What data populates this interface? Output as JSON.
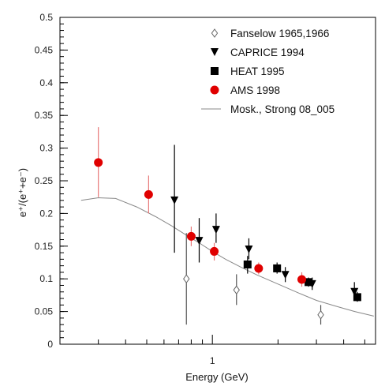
{
  "chart_data": {
    "type": "scatter",
    "xlabel": "Energy (GeV)",
    "ylabel": "e⁺/(e⁺+e⁻)",
    "xscale": "log",
    "xlim": [
      0.2,
      5.6
    ],
    "ylim": [
      0,
      0.5
    ],
    "x_ticks": [
      {
        "value": 1,
        "label": "1"
      }
    ],
    "y_ticks": [
      {
        "value": 0,
        "label": "0"
      },
      {
        "value": 0.05,
        "label": "0.05"
      },
      {
        "value": 0.1,
        "label": "0.1"
      },
      {
        "value": 0.15,
        "label": "0.15"
      },
      {
        "value": 0.2,
        "label": "0.2"
      },
      {
        "value": 0.25,
        "label": "0.25"
      },
      {
        "value": 0.3,
        "label": "0.3"
      },
      {
        "value": 0.35,
        "label": "0.35"
      },
      {
        "value": 0.4,
        "label": "0.4"
      },
      {
        "value": 0.45,
        "label": "0.45"
      },
      {
        "value": 0.5,
        "label": "0.5"
      }
    ],
    "grid": false,
    "legend_position": "top-right",
    "series": [
      {
        "name": "Fanselow 1965,1966",
        "marker": "diamond-open",
        "color": "#666666",
        "points": [
          {
            "x": 0.76,
            "y": 0.1,
            "ylo": 0.03,
            "yhi": 0.17
          },
          {
            "x": 1.29,
            "y": 0.083,
            "ylo": 0.06,
            "yhi": 0.107
          },
          {
            "x": 3.14,
            "y": 0.045,
            "ylo": 0.03,
            "yhi": 0.06
          }
        ]
      },
      {
        "name": "CAPRICE 1994",
        "marker": "triangle-down",
        "color": "#000000",
        "points": [
          {
            "x": 0.67,
            "y": 0.22,
            "ylo": 0.14,
            "yhi": 0.305
          },
          {
            "x": 0.87,
            "y": 0.158,
            "ylo": 0.125,
            "yhi": 0.193
          },
          {
            "x": 1.04,
            "y": 0.175,
            "ylo": 0.155,
            "yhi": 0.2
          },
          {
            "x": 1.47,
            "y": 0.145,
            "ylo": 0.13,
            "yhi": 0.162
          },
          {
            "x": 2.16,
            "y": 0.106,
            "ylo": 0.095,
            "yhi": 0.118
          },
          {
            "x": 2.87,
            "y": 0.092,
            "ylo": 0.083,
            "yhi": 0.102
          },
          {
            "x": 4.48,
            "y": 0.08,
            "ylo": 0.07,
            "yhi": 0.095
          }
        ]
      },
      {
        "name": "HEAT 1995",
        "marker": "square",
        "color": "#000000",
        "points": [
          {
            "x": 1.45,
            "y": 0.122,
            "ylo": 0.108,
            "yhi": 0.135
          },
          {
            "x": 1.98,
            "y": 0.116,
            "ylo": 0.108,
            "yhi": 0.125
          },
          {
            "x": 2.76,
            "y": 0.095,
            "ylo": 0.088,
            "yhi": 0.102
          },
          {
            "x": 4.62,
            "y": 0.072,
            "ylo": 0.065,
            "yhi": 0.08
          }
        ]
      },
      {
        "name": "AMS 1998",
        "marker": "circle",
        "color": "#e00000",
        "points": [
          {
            "x": 0.3,
            "y": 0.278,
            "ylo": 0.225,
            "yhi": 0.332
          },
          {
            "x": 0.51,
            "y": 0.229,
            "ylo": 0.2,
            "yhi": 0.258
          },
          {
            "x": 0.8,
            "y": 0.165,
            "ylo": 0.15,
            "yhi": 0.18
          },
          {
            "x": 1.02,
            "y": 0.142,
            "ylo": 0.128,
            "yhi": 0.155
          },
          {
            "x": 1.63,
            "y": 0.116,
            "ylo": 0.107,
            "yhi": 0.125
          },
          {
            "x": 2.57,
            "y": 0.099,
            "ylo": 0.088,
            "yhi": 0.11
          }
        ]
      },
      {
        "name": "Mosk., Strong 08_005",
        "type": "line",
        "color": "#888888",
        "points": [
          {
            "x": 0.25,
            "y": 0.22
          },
          {
            "x": 0.3,
            "y": 0.224
          },
          {
            "x": 0.36,
            "y": 0.223
          },
          {
            "x": 0.45,
            "y": 0.21
          },
          {
            "x": 0.55,
            "y": 0.195
          },
          {
            "x": 0.65,
            "y": 0.181
          },
          {
            "x": 0.75,
            "y": 0.168
          },
          {
            "x": 0.87,
            "y": 0.155
          },
          {
            "x": 1.0,
            "y": 0.142
          },
          {
            "x": 1.15,
            "y": 0.13
          },
          {
            "x": 1.35,
            "y": 0.118
          },
          {
            "x": 1.6,
            "y": 0.106
          },
          {
            "x": 2.0,
            "y": 0.092
          },
          {
            "x": 2.5,
            "y": 0.078
          },
          {
            "x": 3.0,
            "y": 0.067
          },
          {
            "x": 3.7,
            "y": 0.058
          },
          {
            "x": 4.5,
            "y": 0.05
          },
          {
            "x": 5.5,
            "y": 0.043
          }
        ]
      }
    ]
  }
}
